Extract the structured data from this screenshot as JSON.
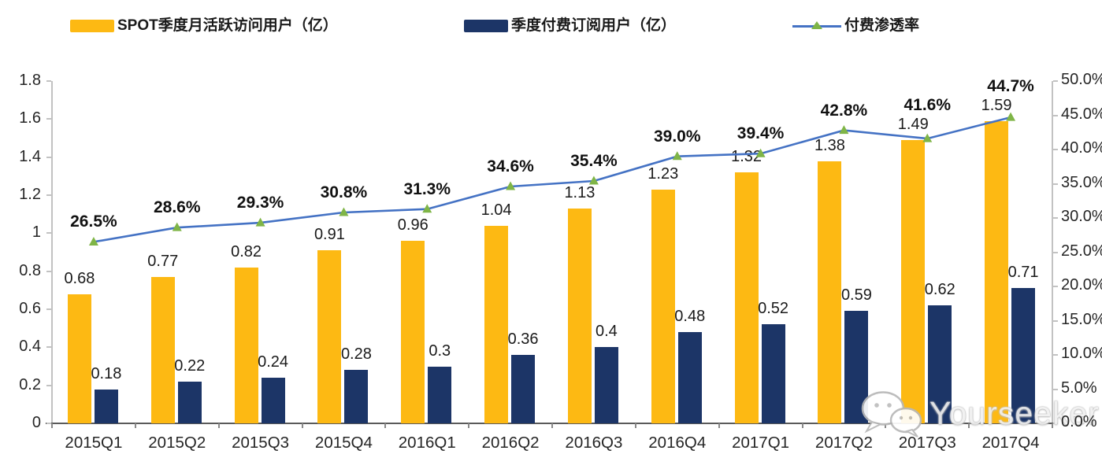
{
  "legend": {
    "items": [
      {
        "label": "SPOT季度月活跃访问用户（亿）",
        "swatch": "bar",
        "color": "#FDB913"
      },
      {
        "label": "季度付费订阅用户（亿）",
        "swatch": "bar",
        "color": "#1C3567"
      },
      {
        "label": "付费渗透率",
        "swatch": "line",
        "color": "#4472C4",
        "marker_color": "#7FB547"
      }
    ]
  },
  "watermark": {
    "text": "Yourseeker",
    "icon": "wechat-icon"
  },
  "chart_data": {
    "type": "bar",
    "subtype": "combo dual-axis: grouped bars + line with triangle markers",
    "categories": [
      "2015Q1",
      "2015Q2",
      "2015Q3",
      "2015Q4",
      "2016Q1",
      "2016Q2",
      "2016Q3",
      "2016Q4",
      "2017Q1",
      "2017Q2",
      "2017Q3",
      "2017Q4"
    ],
    "series": [
      {
        "name": "SPOT季度月活跃访问用户（亿）",
        "type": "bar",
        "axis": "left",
        "color": "#FDB913",
        "values": [
          0.68,
          0.77,
          0.82,
          0.91,
          0.96,
          1.04,
          1.13,
          1.23,
          1.32,
          1.38,
          1.49,
          1.59
        ]
      },
      {
        "name": "季度付费订阅用户（亿）",
        "type": "bar",
        "axis": "left",
        "color": "#1C3567",
        "values": [
          0.18,
          0.22,
          0.24,
          0.28,
          0.3,
          0.36,
          0.4,
          0.48,
          0.52,
          0.59,
          0.62,
          0.71
        ]
      },
      {
        "name": "付费渗透率",
        "type": "line",
        "axis": "right",
        "color": "#4472C4",
        "marker": "triangle",
        "marker_color": "#7FB547",
        "values_percent": [
          26.5,
          28.6,
          29.3,
          30.8,
          31.3,
          34.6,
          35.4,
          39.0,
          39.4,
          42.8,
          41.6,
          44.7
        ],
        "point_labels": [
          "26.5%",
          "28.6%",
          "29.3%",
          "30.8%",
          "31.3%",
          "34.6%",
          "35.4%",
          "39.0%",
          "39.4%",
          "42.8%",
          "41.6%",
          "44.7%"
        ]
      }
    ],
    "left_axis": {
      "min": 0,
      "max": 1.8,
      "step": 0.2,
      "tick_labels": [
        "0",
        "0.2",
        "0.4",
        "0.6",
        "0.8",
        "1",
        "1.2",
        "1.4",
        "1.6",
        "1.8"
      ]
    },
    "right_axis": {
      "min": 0,
      "max": 50,
      "step": 5,
      "unit": "%",
      "tick_labels": [
        "0.0%",
        "5.0%",
        "10.0%",
        "15.0%",
        "20.0%",
        "25.0%",
        "30.0%",
        "35.0%",
        "40.0%",
        "45.0%",
        "50.0%"
      ]
    },
    "grid": false,
    "legend_position": "top",
    "title": ""
  }
}
